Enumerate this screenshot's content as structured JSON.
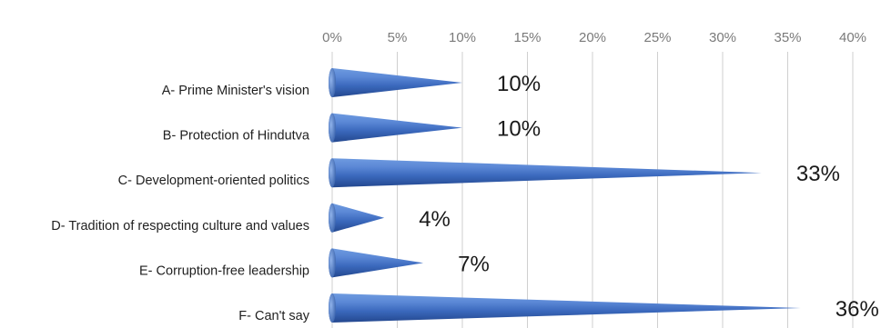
{
  "chart_data": {
    "type": "bar",
    "orientation": "horizontal",
    "bar_shape": "cone",
    "bar_color": "#3f6fc0",
    "categories": [
      "A- Prime Minister's vision",
      "B- Protection of Hindutva",
      "C- Development-oriented politics",
      "D- Tradition of respecting culture and values",
      "E- Corruption-free leadership",
      "F- Can't say"
    ],
    "values": [
      10,
      10,
      33,
      4,
      7,
      36
    ],
    "value_labels": [
      "10%",
      "10%",
      "33%",
      "4%",
      "7%",
      "36%"
    ],
    "xlim": [
      0,
      40
    ],
    "xticks": [
      "0%",
      "5%",
      "10%",
      "15%",
      "20%",
      "25%",
      "30%",
      "35%",
      "40%"
    ],
    "x_axis_position": "top",
    "grid": true
  }
}
